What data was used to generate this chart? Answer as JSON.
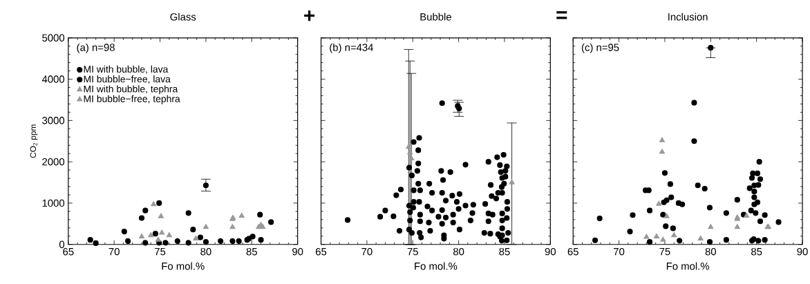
{
  "chart_data": [
    {
      "type": "scatter",
      "title": "Glass",
      "xlabel": "Fo mol.%",
      "ylabel": "CO$_{2}$ ppm",
      "annotations": [
        "(a) n=98",
        "+"
      ],
      "xlim": [
        65,
        90
      ],
      "ylim": [
        0,
        5000
      ],
      "xticks": [
        65,
        70,
        75,
        80,
        85,
        90
      ],
      "yticks": [
        0,
        1000,
        2000,
        3000,
        4000,
        5000
      ],
      "grid": false,
      "legend": "top left",
      "series": [
        {
          "name": "MI with bubble, lava",
          "color": "#000000",
          "marker": "circle",
          "x": [
            68.0,
            71.5,
            73.0,
            73.4,
            73.4,
            74.9,
            75.6,
            76.9,
            78.1,
            78.1,
            78.6,
            79.4,
            80.0,
            81.6,
            82.9,
            83.6,
            84.5
          ],
          "values": [
            30,
            80,
            640,
            820,
            40,
            40,
            40,
            80,
            760,
            40,
            360,
            170,
            1430,
            80,
            80,
            80,
            110
          ],
          "errors": [
            null,
            null,
            null,
            null,
            null,
            null,
            null,
            null,
            null,
            null,
            null,
            null,
            [
              1290,
              1580
            ],
            null,
            null,
            null,
            null
          ]
        },
        {
          "name": "MI bubble−free, lava",
          "color": "#000000",
          "marker": "circle",
          "x": [
            67.4,
            71.1,
            74.9,
            74.5,
            80.0,
            84.7,
            85.1,
            85.9,
            86.0,
            87.1
          ],
          "values": [
            110,
            310,
            1000,
            260,
            60,
            140,
            190,
            720,
            110,
            540
          ]
        },
        {
          "name": "MI with bubble, tephra",
          "color": "#999999",
          "marker": "triangle",
          "x": [
            75.1,
            75.2,
            74.8,
            82.9,
            82.9,
            86.0,
            86.2
          ],
          "values": [
            680,
            280,
            110,
            420,
            610,
            470,
            420
          ]
        },
        {
          "name": "MI bubble−free, tephra",
          "color": "#999999",
          "marker": "triangle",
          "x": [
            73.0,
            74.0,
            74.3,
            76.0,
            78.9,
            80.0,
            82.95,
            83.9,
            85.75
          ],
          "values": [
            190,
            220,
            970,
            220,
            140,
            420,
            640,
            690,
            420
          ]
        }
      ]
    },
    {
      "type": "scatter",
      "title": "Bubble",
      "xlabel": "Fo mol.%",
      "annotations": [
        "(b) n=434",
        "="
      ],
      "xlim": [
        65,
        90
      ],
      "ylim": [
        0,
        5000
      ],
      "xticks": [
        65,
        70,
        75,
        80,
        85,
        90
      ],
      "yticks": [
        0,
        1000,
        2000,
        3000,
        4000,
        5000
      ],
      "grid": false,
      "tick_labels": "x",
      "series": [
        {
          "color": "#000000",
          "marker": "circle",
          "x": [
            67.9,
            71.45,
            72.0,
            72.9,
            73.2,
            73.7,
            73.55,
            74.6,
            74.6,
            74.9,
            74.7,
            74.7,
            74.6,
            75.1,
            75.7,
            75.6,
            75.6,
            75.5,
            75.6,
            75.8,
            75.1,
            75.1,
            75.05,
            75.7,
            75.8,
            75.8,
            75.75,
            75.9,
            74.9,
            76.6,
            76.75,
            76.9,
            76.8,
            77.1,
            77.1,
            77.8,
            78.2,
            78.1,
            78.3,
            78.2,
            78.2,
            78.2,
            78.4,
            78.4,
            78.6,
            78.6,
            79.1,
            79.3,
            79.4,
            79.4,
            79.8,
            79.9,
            80.05,
            80.1,
            80.0,
            80.1,
            80.75,
            80.75,
            81.3,
            81.5,
            81.6,
            82.8,
            82.9,
            83.25,
            83.25,
            83.25,
            83.45,
            83.5,
            83.7,
            83.6,
            84.2,
            84.1,
            84.3,
            84.3,
            84.9,
            84.5,
            84.6,
            84.75,
            84.7,
            84.75,
            84.75,
            84.75,
            84.75,
            84.75,
            84.7,
            85.1,
            85.25,
            85.1,
            84.95,
            85.3,
            85.3,
            85.25,
            85.4,
            85.25,
            84.5
          ],
          "values": [
            590,
            670,
            820,
            680,
            1190,
            1330,
            330,
            940,
            1860,
            1670,
            780,
            580,
            360,
            2480,
            2580,
            2280,
            1960,
            1780,
            1470,
            1310,
            1310,
            1030,
            890,
            1030,
            720,
            560,
            280,
            170,
            280,
            920,
            530,
            330,
            1470,
            1250,
            820,
            670,
            3420,
            1780,
            1560,
            1250,
            830,
            500,
            140,
            220,
            1060,
            650,
            1750,
            1180,
            720,
            530,
            1030,
            3350,
            3290,
            1220,
            860,
            360,
            1930,
            940,
            580,
            760,
            960,
            280,
            980,
            2000,
            560,
            750,
            260,
            1440,
            720,
            1170,
            2110,
            1110,
            1250,
            250,
            2170,
            1920,
            1750,
            1610,
            1390,
            1250,
            750,
            580,
            390,
            220,
            90,
            1780,
            1890,
            1640,
            1470,
            1030,
            860,
            640,
            280,
            100,
            190
          ],
          "errors": [
            null,
            null,
            null,
            null,
            null,
            null,
            null,
            null,
            null,
            null,
            null,
            null,
            null,
            null,
            null,
            null,
            null,
            null,
            null,
            null,
            null,
            null,
            null,
            null,
            null,
            null,
            null,
            null,
            null,
            null,
            null,
            null,
            null,
            null,
            null,
            null,
            null,
            null,
            null,
            null,
            null,
            null,
            null,
            null,
            null,
            null,
            null,
            null,
            null,
            null,
            null,
            [
              3200,
              3490
            ],
            [
              3100,
              3440
            ],
            null,
            null,
            null,
            null,
            null,
            null,
            null,
            null,
            null,
            null,
            null,
            null,
            null,
            null,
            null,
            null,
            null,
            null,
            null,
            null,
            null,
            null,
            null,
            null,
            null,
            null,
            null,
            null,
            null,
            null,
            null,
            null,
            null,
            null,
            null,
            null,
            null,
            null,
            null,
            null,
            null,
            null
          ]
        },
        {
          "color": "#999999",
          "marker": "triangle",
          "x": [
            74.55,
            74.7,
            74.85,
            85.8
          ],
          "values": [
            2360,
            2220,
            2080,
            1500
          ],
          "errors": [
            [
              0,
              4720
            ],
            [
              0,
              4440
            ],
            [
              0,
              4140
            ],
            [
              0,
              2940
            ]
          ]
        }
      ]
    },
    {
      "type": "scatter",
      "title": "Inclusion",
      "xlabel": "Fo mol.%",
      "annotations": [
        "(c) n=95"
      ],
      "xlim": [
        65,
        90
      ],
      "ylim": [
        0,
        5000
      ],
      "xticks": [
        65,
        70,
        75,
        80,
        85,
        90
      ],
      "yticks": [
        0,
        1000,
        2000,
        3000,
        4000,
        5000
      ],
      "grid": false,
      "tick_labels": "x",
      "series": [
        {
          "color": "#000000",
          "marker": "circle",
          "x": [
            67.9,
            71.5,
            73.35,
            72.9,
            73.25,
            75.0,
            75.6,
            75.7,
            75.2,
            74.8,
            75.1,
            75.9,
            76.5,
            76.9,
            76.6,
            73.35,
            78.2,
            78.2,
            78.6,
            79.35,
            79.9,
            80.0,
            81.7,
            81.7,
            82.9,
            83.6,
            84.5,
            84.6,
            85.1,
            85.3,
            85.4,
            85.2,
            84.25,
            84.75,
            84.75,
            84.75,
            84.75,
            85.1,
            84.4,
            84.9,
            85.4,
            84.5,
            85.2
          ],
          "values": [
            630,
            710,
            820,
            1310,
            1310,
            1730,
            1460,
            1140,
            1070,
            720,
            440,
            390,
            1000,
            970,
            90,
            60,
            3430,
            2500,
            1430,
            1350,
            890,
            4760,
            760,
            110,
            1080,
            720,
            1610,
            1720,
            1720,
            2000,
            1580,
            1440,
            1360,
            1430,
            1280,
            1140,
            970,
            1020,
            820,
            760,
            560,
            90,
            90
          ],
          "errors": [
            null,
            null,
            null,
            null,
            null,
            null,
            null,
            null,
            null,
            null,
            null,
            null,
            null,
            null,
            null,
            null,
            null,
            null,
            null,
            null,
            null,
            [
              4520,
              4760
            ],
            null,
            null,
            null,
            null,
            null,
            null,
            null,
            null,
            null,
            null,
            null,
            null,
            null,
            null,
            null,
            null,
            null,
            null,
            null,
            null,
            null
          ]
        },
        {
          "color": "#000000",
          "marker": "circle",
          "x": [
            67.4,
            71.2,
            74.9,
            79.9,
            84.7,
            85.9,
            85.9,
            87.4
          ],
          "values": [
            100,
            310,
            1020,
            60,
            130,
            110,
            710,
            540
          ]
        },
        {
          "color": "#999999",
          "marker": "triangle",
          "x": [
            74.7,
            74.7,
            75.2,
            82.9,
            82.9,
            86.2,
            74.8
          ],
          "values": [
            2520,
            2240,
            680,
            650,
            420,
            420,
            110
          ]
        },
        {
          "color": "#999999",
          "marker": "triangle",
          "x": [
            73.0,
            74.1,
            76.0,
            78.9,
            80.0,
            83.9,
            82.9,
            74.35,
            86.3
          ],
          "values": [
            180,
            190,
            220,
            140,
            420,
            690,
            610,
            980,
            420
          ]
        }
      ]
    }
  ]
}
